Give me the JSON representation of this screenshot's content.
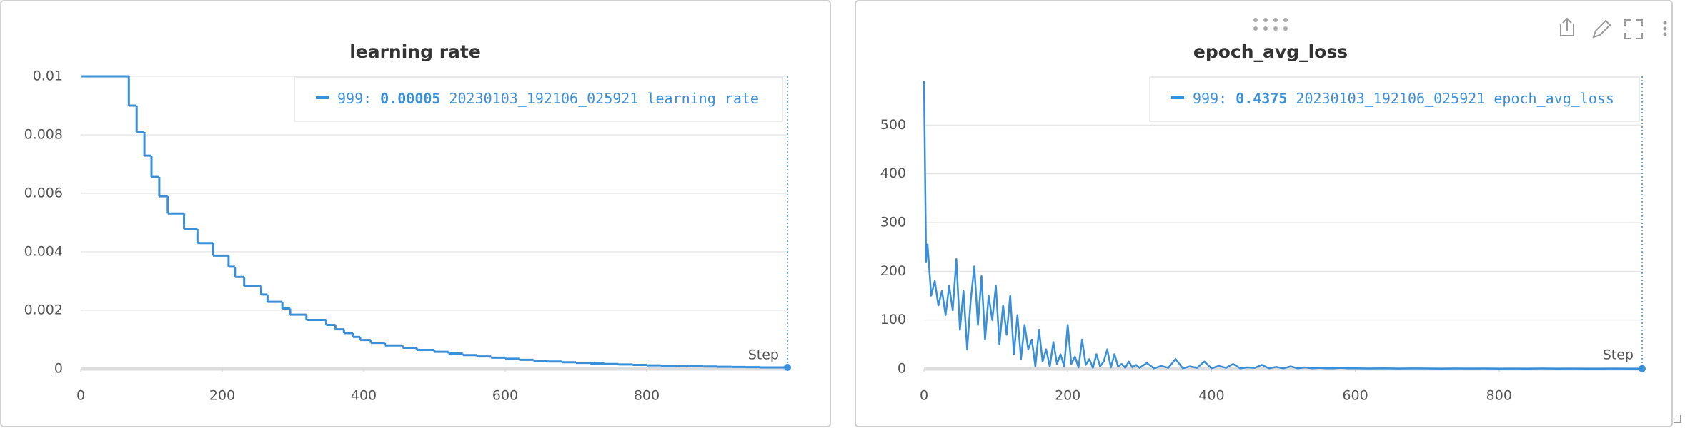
{
  "chart_data": [
    {
      "type": "line",
      "line_shape": "hv",
      "title": "learning rate",
      "x_label": "Step",
      "x": [
        0,
        68,
        79,
        90,
        100,
        111,
        123,
        146,
        165,
        187,
        209,
        218,
        231,
        255,
        264,
        285,
        296,
        319,
        347,
        360,
        372,
        385,
        395,
        410,
        430,
        455,
        475,
        500,
        520,
        540,
        560,
        580,
        600,
        620,
        640,
        660,
        680,
        700,
        720,
        740,
        760,
        780,
        800,
        820,
        840,
        860,
        880,
        900,
        920,
        940,
        960,
        999
      ],
      "series": [
        {
          "name": "20230103_192106_025921 learning rate",
          "color": "#3a8fd9",
          "values": [
            0.01,
            0.009,
            0.0081,
            0.00729,
            0.00656,
            0.0059,
            0.00531,
            0.00478,
            0.0043,
            0.00387,
            0.00349,
            0.00314,
            0.00282,
            0.00254,
            0.00229,
            0.00206,
            0.00185,
            0.00167,
            0.0015,
            0.00135,
            0.00122,
            0.00109,
            0.000985,
            0.000886,
            0.000798,
            0.000718,
            0.000646,
            0.000581,
            0.000523,
            0.000471,
            0.000424,
            0.000382,
            0.000343,
            0.000309,
            0.000278,
            0.00025,
            0.000225,
            0.000203,
            0.000182,
            0.000164,
            0.000148,
            0.000133,
            0.00012,
            0.000108,
            9.71e-05,
            8.74e-05,
            7.87e-05,
            7.08e-05,
            6.37e-05,
            5.74e-05,
            5e-05,
            5e-05
          ]
        }
      ],
      "legend": {
        "step_label": "999:",
        "value_label": "0.00005"
      },
      "xlim": [
        0,
        999
      ],
      "ylim": [
        0,
        0.01
      ],
      "xticks": [
        0,
        200,
        400,
        600,
        800
      ],
      "yticks": [
        0,
        0.002,
        0.004,
        0.006,
        0.008,
        0.01
      ],
      "grid": true
    },
    {
      "type": "line",
      "line_shape": "linear",
      "title": "epoch_avg_loss",
      "x_label": "Step",
      "x": [
        0,
        3,
        5,
        10,
        15,
        20,
        25,
        30,
        35,
        40,
        45,
        50,
        55,
        60,
        65,
        70,
        75,
        80,
        85,
        90,
        95,
        100,
        105,
        110,
        115,
        120,
        125,
        130,
        135,
        140,
        145,
        150,
        155,
        160,
        165,
        170,
        175,
        180,
        185,
        190,
        195,
        200,
        205,
        210,
        215,
        220,
        225,
        230,
        235,
        240,
        245,
        250,
        255,
        260,
        265,
        270,
        275,
        280,
        285,
        290,
        295,
        300,
        310,
        320,
        330,
        340,
        350,
        360,
        370,
        380,
        390,
        400,
        410,
        420,
        430,
        440,
        450,
        460,
        470,
        480,
        490,
        500,
        510,
        520,
        530,
        540,
        550,
        560,
        570,
        580,
        590,
        600,
        620,
        640,
        660,
        680,
        700,
        720,
        740,
        760,
        780,
        800,
        820,
        840,
        860,
        880,
        900,
        920,
        940,
        960,
        980,
        999
      ],
      "series": [
        {
          "name": "20230103_192106_025921 epoch_avg_loss",
          "color": "#3a8fd9",
          "values": [
            590,
            220,
            255,
            150,
            180,
            130,
            160,
            110,
            170,
            120,
            225,
            80,
            160,
            40,
            140,
            210,
            90,
            190,
            60,
            150,
            100,
            170,
            50,
            130,
            70,
            150,
            30,
            110,
            20,
            90,
            40,
            60,
            5,
            80,
            15,
            40,
            5,
            55,
            10,
            30,
            5,
            90,
            10,
            25,
            3,
            60,
            8,
            20,
            2,
            30,
            5,
            15,
            40,
            3,
            30,
            5,
            10,
            2,
            15,
            3,
            8,
            2,
            12,
            1,
            6,
            2,
            20,
            1,
            5,
            2,
            15,
            1,
            6,
            2,
            10,
            1,
            3,
            2,
            8,
            1,
            4,
            1,
            5,
            1,
            3,
            1,
            2,
            1,
            1,
            2,
            1,
            1,
            0.8,
            1,
            0.6,
            0.9,
            0.7,
            0.5,
            0.8,
            0.6,
            0.7,
            0.5,
            0.6,
            0.5,
            0.7,
            0.5,
            0.6,
            0.5,
            0.5,
            0.6,
            0.5,
            0.4375
          ]
        }
      ],
      "legend": {
        "step_label": "999:",
        "value_label": "0.4375"
      },
      "xlim": [
        0,
        999
      ],
      "ylim": [
        0,
        600
      ],
      "xticks": [
        0,
        200,
        400,
        600,
        800
      ],
      "yticks": [
        0,
        100,
        200,
        300,
        400,
        500
      ],
      "grid": true
    }
  ]
}
